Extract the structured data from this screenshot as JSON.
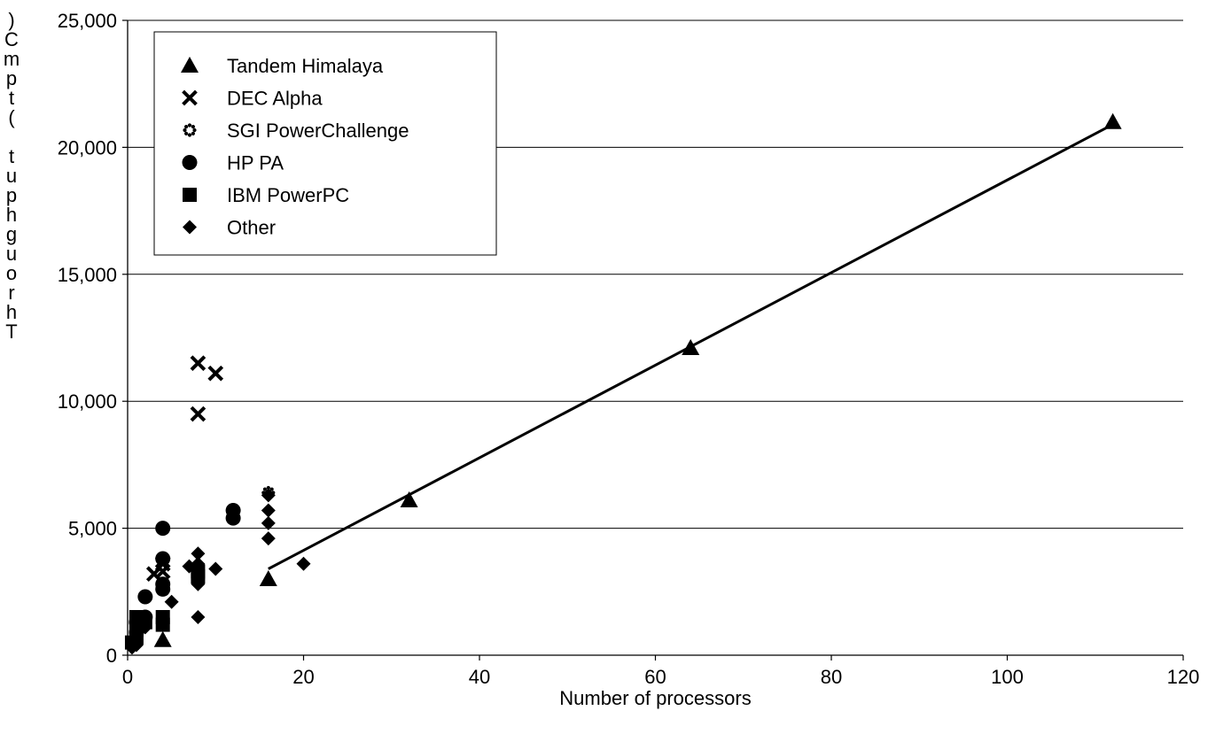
{
  "chart_data": {
    "type": "scatter",
    "title": "",
    "xlabel": "Number of processors",
    "ylabel": "Throughput (tpmC)",
    "xlim": [
      0,
      120
    ],
    "ylim": [
      0,
      25000
    ],
    "x_ticks": [
      0,
      20,
      40,
      60,
      80,
      100,
      120
    ],
    "y_ticks": [
      0,
      5000,
      10000,
      15000,
      20000,
      25000
    ],
    "x_tick_labels": [
      "0",
      "20",
      "40",
      "60",
      "80",
      "100",
      "120"
    ],
    "y_tick_labels": [
      "0",
      "5,000",
      "10,000",
      "15,000",
      "20,000",
      "25,000"
    ],
    "grid": "horizontal",
    "legend_position": "top-left",
    "series": [
      {
        "name": "Tandem Himalaya",
        "marker": "triangle",
        "points": [
          [
            4,
            600
          ],
          [
            16,
            3000
          ],
          [
            32,
            6100
          ],
          [
            64,
            12100
          ],
          [
            112,
            21000
          ]
        ]
      },
      {
        "name": "DEC Alpha",
        "marker": "x",
        "points": [
          [
            3,
            3200
          ],
          [
            4,
            3600
          ],
          [
            4,
            3300
          ],
          [
            8,
            11500
          ],
          [
            10,
            11100
          ],
          [
            8,
            9500
          ]
        ]
      },
      {
        "name": "SGI PowerChallenge",
        "marker": "asterisk",
        "points": [
          [
            16,
            6400
          ]
        ]
      },
      {
        "name": "HP PA",
        "marker": "circle",
        "points": [
          [
            1,
            900
          ],
          [
            1,
            1300
          ],
          [
            2,
            1500
          ],
          [
            2,
            2300
          ],
          [
            4,
            2600
          ],
          [
            4,
            2800
          ],
          [
            4,
            3800
          ],
          [
            4,
            5000
          ],
          [
            12,
            5400
          ],
          [
            12,
            5700
          ]
        ]
      },
      {
        "name": "IBM PowerPC",
        "marker": "square",
        "points": [
          [
            0.5,
            500
          ],
          [
            1,
            700
          ],
          [
            1,
            1000
          ],
          [
            1,
            1500
          ],
          [
            2,
            1300
          ],
          [
            4,
            1200
          ],
          [
            4,
            1500
          ],
          [
            8,
            3100
          ],
          [
            8,
            3300
          ]
        ]
      },
      {
        "name": "Other",
        "marker": "diamond",
        "points": [
          [
            0.5,
            300
          ],
          [
            1,
            400
          ],
          [
            1,
            600
          ],
          [
            2,
            1100
          ],
          [
            4,
            1300
          ],
          [
            5,
            2100
          ],
          [
            7,
            3500
          ],
          [
            8,
            1500
          ],
          [
            8,
            2800
          ],
          [
            8,
            3000
          ],
          [
            8,
            3600
          ],
          [
            8,
            4000
          ],
          [
            10,
            3400
          ],
          [
            16,
            4600
          ],
          [
            16,
            5200
          ],
          [
            16,
            5700
          ],
          [
            16,
            6300
          ],
          [
            20,
            3600
          ]
        ]
      }
    ],
    "trendline": {
      "series": "Tandem Himalaya",
      "points": [
        [
          16,
          3400
        ],
        [
          112,
          20900
        ]
      ]
    }
  }
}
